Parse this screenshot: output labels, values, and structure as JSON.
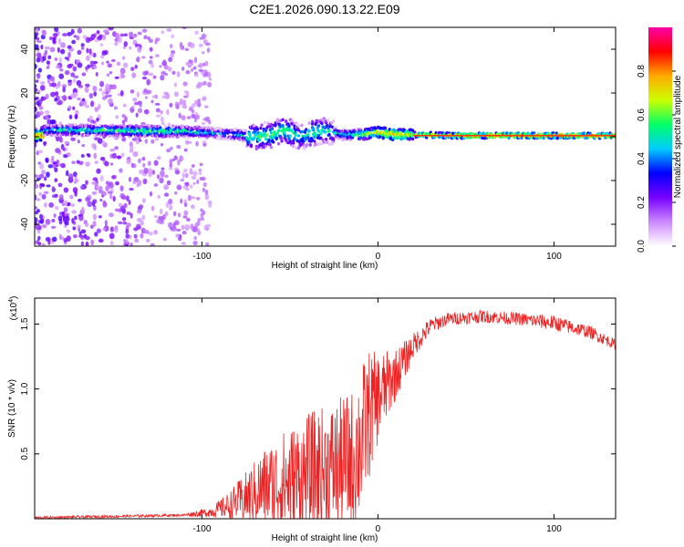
{
  "figure_title": "C2E1.2026.090.13.22.E09",
  "chart_data": [
    {
      "type": "heatmap",
      "name": "spectrogram",
      "xlabel": "Height of straight line (km)",
      "ylabel": "Frequency (Hz)",
      "xlim": [
        -195,
        135
      ],
      "ylim": [
        -50,
        50
      ],
      "xticks": [
        -100,
        0,
        100
      ],
      "xtick_labels": [
        "-100",
        "0",
        "100"
      ],
      "yticks": [
        -40,
        -20,
        0,
        20,
        40
      ],
      "ytick_labels": [
        "-40",
        "-20",
        "0",
        "20",
        "40"
      ],
      "colorbar": {
        "label": "Normalized spectral amplitude",
        "range": [
          0,
          1
        ],
        "ticks": [
          0.0,
          0.2,
          0.4,
          0.6,
          0.8
        ],
        "tick_labels": [
          "0.0",
          "0.2",
          "0.4",
          "0.6",
          "0.8"
        ],
        "colors": [
          "#ffffff",
          "#cc88ff",
          "#7700ff",
          "#0000ff",
          "#00ccff",
          "#00ff66",
          "#ccff00",
          "#ffaa00",
          "#ff0000",
          "#ff00aa"
        ]
      },
      "ridge": {
        "x": [
          -190,
          -160,
          -130,
          -110,
          -100,
          -90,
          -80,
          -70,
          -60,
          -55,
          -50,
          -45,
          -40,
          -35,
          -30,
          -20,
          -10,
          0,
          10,
          20,
          40,
          80,
          135
        ],
        "freq": [
          3,
          3,
          2.5,
          2.5,
          2,
          1.5,
          1,
          0,
          1,
          3,
          2,
          0,
          1,
          2,
          3,
          1,
          1,
          2,
          1,
          1,
          0.5,
          0.5,
          0.5
        ],
        "amplitude": [
          0.5,
          0.55,
          0.6,
          0.55,
          0.5,
          0.45,
          0.5,
          0.55,
          0.6,
          0.55,
          0.6,
          0.5,
          0.55,
          0.6,
          0.5,
          0.5,
          0.6,
          0.75,
          0.8,
          0.7,
          0.8,
          0.85,
          0.8
        ]
      },
      "noise_region_x": [
        -195,
        -95
      ]
    },
    {
      "type": "line",
      "name": "snr",
      "xlabel": "Height of straight line (km)",
      "ylabel": "SNR (10 * v/v)",
      "scale_label": "(x10",
      "scale_exp": "4",
      "scale_suffix": ")",
      "xlim": [
        -195,
        135
      ],
      "ylim": [
        0,
        1.7
      ],
      "xticks": [
        -100,
        0,
        100
      ],
      "xtick_labels": [
        "-100",
        "0",
        "100"
      ],
      "yticks": [
        0.5,
        1.0,
        1.5
      ],
      "ytick_labels": [
        "0.5",
        "1.0",
        "1.5"
      ],
      "series": [
        {
          "name": "SNR",
          "color": "#ee2222",
          "envelope_x": [
            -195,
            -150,
            -110,
            -95,
            -85,
            -75,
            -65,
            -55,
            -45,
            -35,
            -25,
            -15,
            -10,
            -5,
            0,
            10,
            20,
            30,
            40,
            60,
            80,
            100,
            120,
            135
          ],
          "envelope_y": [
            0.01,
            0.02,
            0.03,
            0.06,
            0.12,
            0.2,
            0.3,
            0.35,
            0.4,
            0.45,
            0.5,
            0.55,
            0.7,
            0.9,
            1.0,
            1.15,
            1.35,
            1.5,
            1.55,
            1.57,
            1.55,
            1.52,
            1.45,
            1.35
          ],
          "spread_y": [
            0.01,
            0.01,
            0.01,
            0.04,
            0.1,
            0.2,
            0.3,
            0.4,
            0.45,
            0.5,
            0.5,
            0.55,
            0.6,
            0.5,
            0.35,
            0.2,
            0.1,
            0.06,
            0.05,
            0.05,
            0.05,
            0.06,
            0.05,
            0.04
          ]
        }
      ]
    }
  ]
}
